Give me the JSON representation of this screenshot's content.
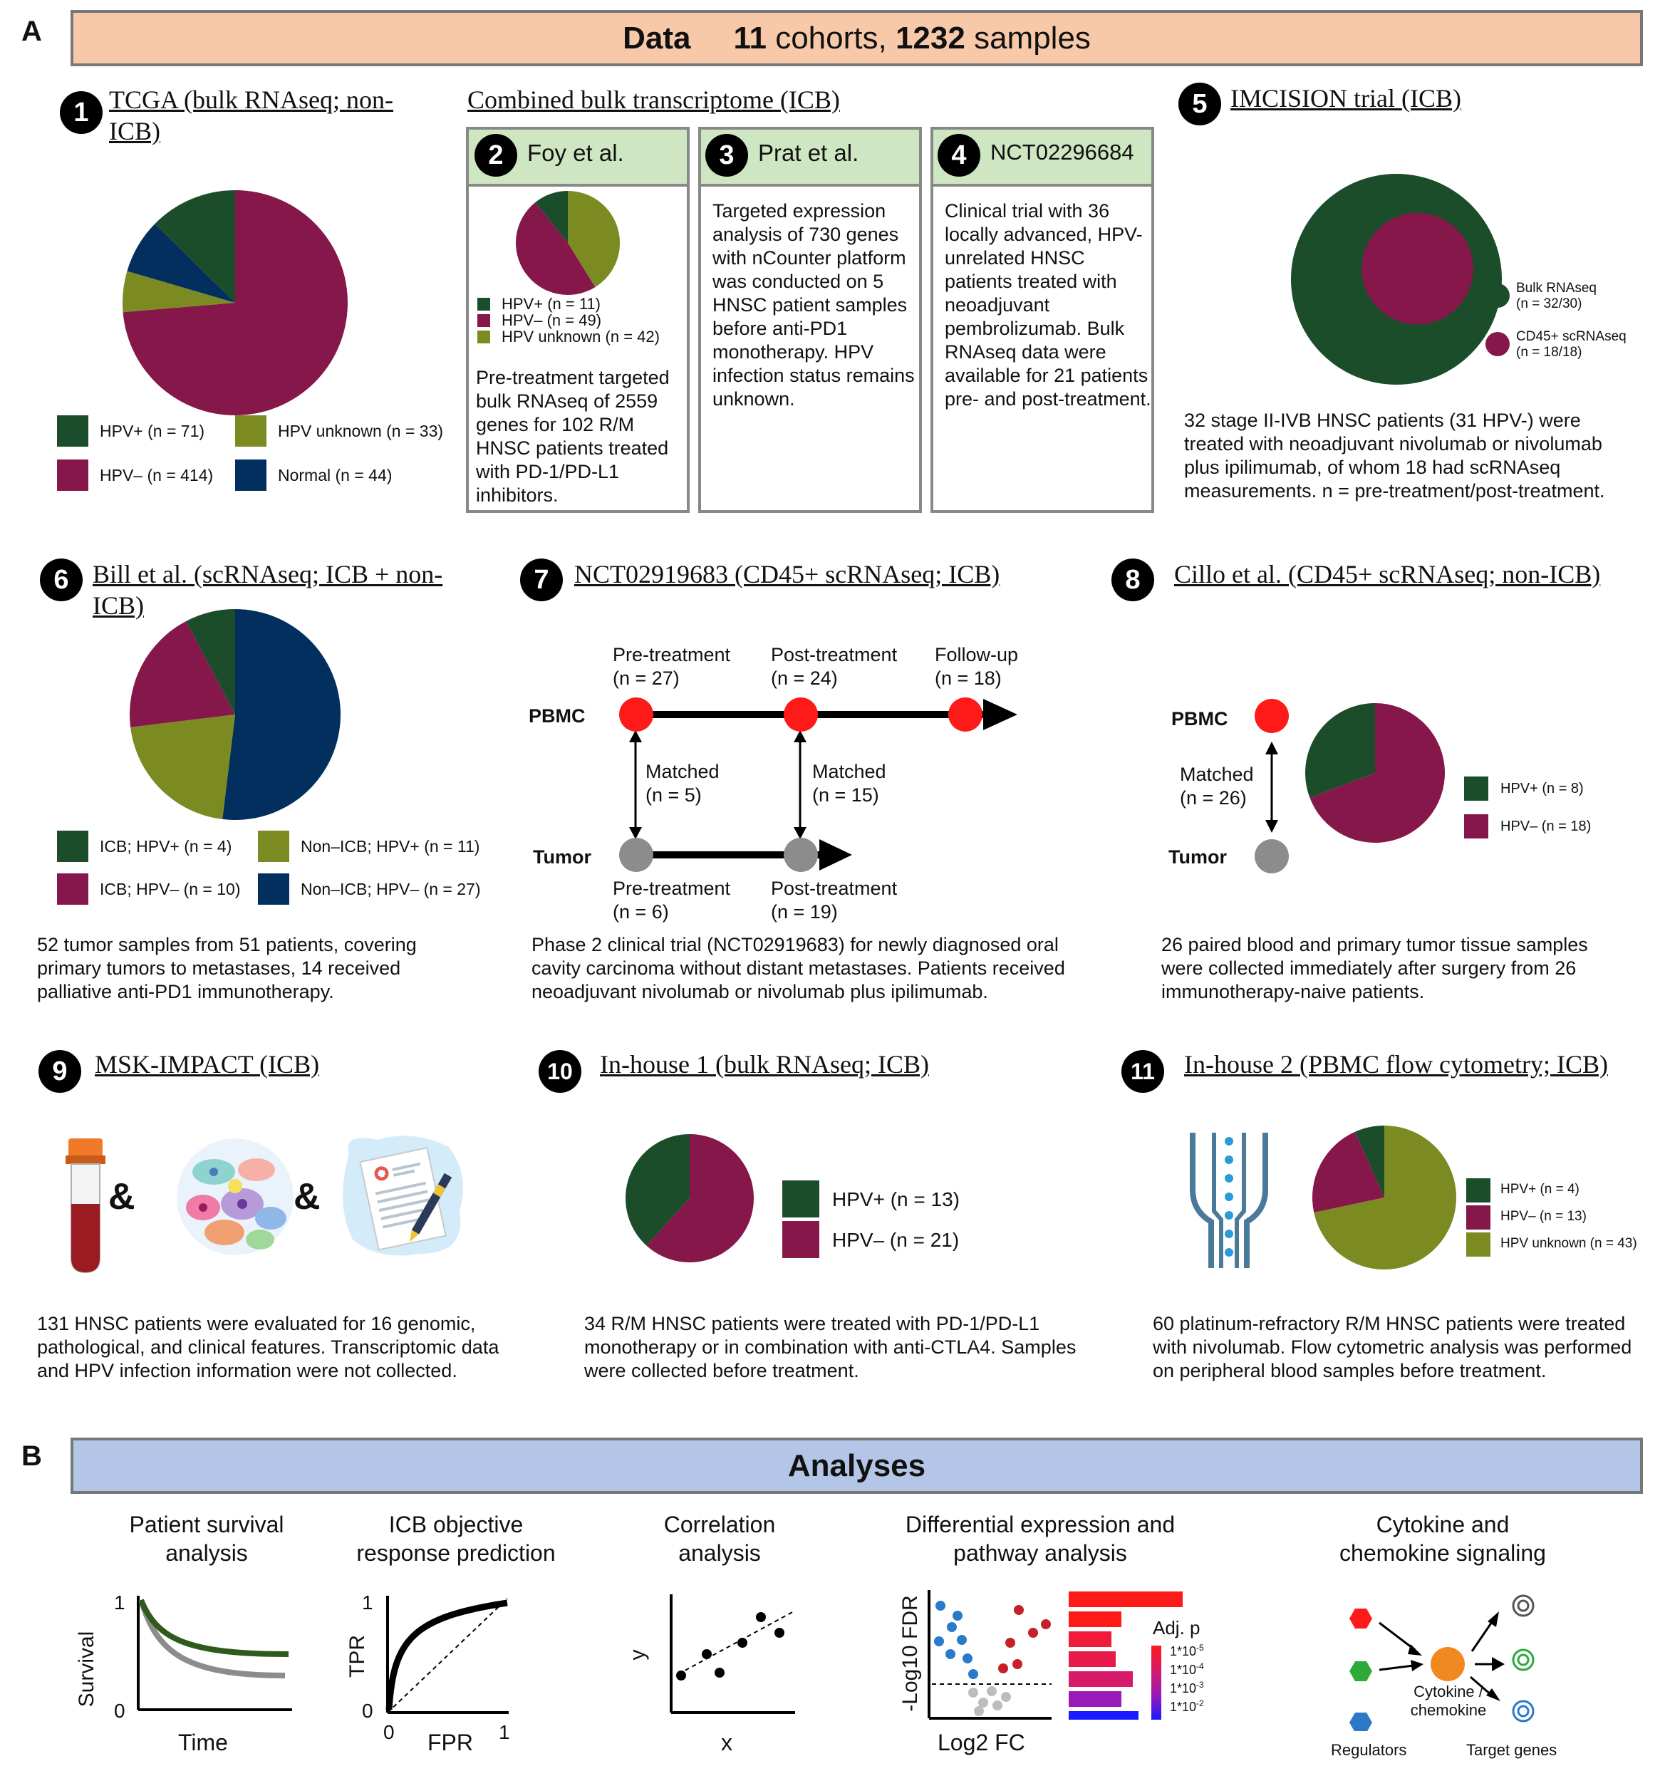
{
  "panel_a": {
    "letter": "A",
    "banner_data": "Data",
    "banner_cohorts_num": "11",
    "banner_cohorts_word": "cohorts,",
    "banner_samples_num": "1232",
    "banner_samples_word": "samples",
    "banner_color": "#f8c9a9"
  },
  "colors": {
    "hpv_pos": "#1b4d2a",
    "hpv_neg": "#86174a",
    "hpv_unknown": "#7c8a22",
    "normal": "#022f5e",
    "box_header": "#cfe6c2",
    "pbmc": "#ff1a1a",
    "tumor": "#8c8c8c",
    "analyses_banner": "#b4c6e7"
  },
  "d1": {
    "number": "1",
    "title": "TCGA (bulk RNAseq; non-ICB)",
    "legend": [
      "HPV+ (n = 71)",
      "HPV unknown (n = 33)",
      "HPV– (n = 414)",
      "Normal (n = 44)"
    ],
    "chart_data": {
      "type": "pie",
      "labels": [
        "HPV+",
        "HPV–",
        "HPV unknown",
        "Normal"
      ],
      "values": [
        71,
        414,
        33,
        44
      ]
    }
  },
  "combined_title": "Combined bulk transcriptome (ICB)",
  "d2": {
    "number": "2",
    "name": "Foy et al.",
    "legend": [
      "HPV+ (n = 11)",
      "HPV– (n = 49)",
      "HPV unknown (n = 42)"
    ],
    "text": "Pre-treatment targeted bulk RNAseq of 2559 genes for 102 R/M HNSC patients treated with PD-1/PD-L1 inhibitors.",
    "chart_data": {
      "type": "pie",
      "labels": [
        "HPV+",
        "HPV–",
        "HPV unknown"
      ],
      "values": [
        11,
        49,
        42
      ]
    }
  },
  "d3": {
    "number": "3",
    "name": "Prat et al.",
    "text": "Targeted expression analysis of 730 genes with nCounter platform was conducted on 5 HNSC patient samples before anti-PD1 monotherapy. HPV infection status remains unknown."
  },
  "d4": {
    "number": "4",
    "name": "NCT02296684",
    "text": "Clinical trial with 36 locally advanced, HPV-unrelated HNSC patients treated with neoadjuvant pembrolizumab. Bulk RNAseq data were available for 21 patients pre- and post-treatment."
  },
  "d5": {
    "number": "5",
    "title": "IMCISION trial (ICB)",
    "legend_bulk": "Bulk RNAseq",
    "legend_bulk_n": "(n = 32/30)",
    "legend_cd45": "CD45+ scRNAseq",
    "legend_cd45_n": "(n = 18/18)",
    "text": "32 stage II-IVB HNSC patients (31 HPV-) were treated with neoadjuvant nivolumab or nivolumab plus ipilimumab, of whom 18 had scRNAseq measurements. n = pre-treatment/post-treatment.",
    "chart_data": {
      "type": "nested-circles",
      "bulk_rnaseq_n": 32,
      "cd45_scrnaseq_n": 18
    }
  },
  "d6": {
    "number": "6",
    "title": "Bill et al. (scRNAseq; ICB + non-ICB)",
    "legend": [
      "ICB; HPV+ (n = 4)",
      "Non–ICB; HPV+ (n = 11)",
      "ICB; HPV– (n = 10)",
      "Non–ICB; HPV– (n = 27)"
    ],
    "text": "52 tumor samples from 51 patients, covering primary tumors to metastases, 14 received palliative anti-PD1 immunotherapy.",
    "chart_data": {
      "type": "pie",
      "labels": [
        "ICB; HPV+",
        "ICB; HPV–",
        "Non–ICB; HPV+",
        "Non–ICB; HPV–"
      ],
      "values": [
        4,
        10,
        11,
        27
      ]
    }
  },
  "d7": {
    "number": "7",
    "title": "NCT02919683 (CD45+ scRNAseq; ICB)",
    "pbmc": "PBMC",
    "tumor": "Tumor",
    "pre": "Pre-treatment",
    "pre_n": "(n = 27)",
    "post": "Post-treatment",
    "post_n": "(n = 24)",
    "follow": "Follow-up",
    "follow_n": "(n = 18)",
    "matched1": "Matched",
    "matched1_n": "(n = 5)",
    "matched2": "Matched",
    "matched2_n": "(n = 15)",
    "tpre": "Pre-treatment",
    "tpre_n": "(n = 6)",
    "tpost": "Post-treatment",
    "tpost_n": "(n = 19)",
    "text": "Phase 2 clinical trial (NCT02919683) for newly diagnosed oral cavity carcinoma without distant metastases. Patients received neoadjuvant nivolumab or nivolumab plus ipilimumab."
  },
  "d8": {
    "number": "8",
    "title": "Cillo et al. (CD45+ scRNAseq; non-ICB)",
    "pbmc": "PBMC",
    "tumor": "Tumor",
    "matched": "Matched",
    "matched_n": "(n = 26)",
    "legend": [
      "HPV+ (n = 8)",
      "HPV– (n = 18)"
    ],
    "text": "26 paired blood and primary tumor tissue samples were collected immediately after surgery from 26 immunotherapy-naive patients.",
    "chart_data": {
      "type": "pie",
      "labels": [
        "HPV+",
        "HPV–"
      ],
      "values": [
        8,
        18
      ]
    }
  },
  "d9": {
    "number": "9",
    "title": "MSK-IMPACT (ICB)",
    "amp": "&",
    "icons": [
      "blood-tube-icon",
      "tissue-cells-icon",
      "clinical-report-icon"
    ],
    "text": "131 HNSC patients were evaluated for 16 genomic, pathological, and clinical features. Transcriptomic data and HPV infection information were not collected."
  },
  "d10": {
    "number": "10",
    "title": "In-house 1 (bulk RNAseq; ICB)",
    "legend": [
      "HPV+ (n = 13)",
      "HPV– (n = 21)"
    ],
    "text": "34 R/M HNSC patients were treated with PD-1/PD-L1 monotherapy or in combination with anti-CTLA4. Samples were collected before treatment.",
    "chart_data": {
      "type": "pie",
      "labels": [
        "HPV+",
        "HPV–"
      ],
      "values": [
        13,
        21
      ]
    }
  },
  "d11": {
    "number": "11",
    "title": "In-house 2 (PBMC flow cytometry; ICB)",
    "legend": [
      "HPV+ (n = 4)",
      "HPV– (n = 13)",
      "HPV unknown (n = 43)"
    ],
    "text": "60 platinum-refractory R/M HNSC patients were treated with nivolumab. Flow cytometric analysis was performed on peripheral blood samples before treatment.",
    "chart_data": {
      "type": "pie",
      "labels": [
        "HPV+",
        "HPV–",
        "HPV unknown"
      ],
      "values": [
        4,
        13,
        43
      ]
    }
  },
  "panel_b": {
    "letter": "B",
    "banner": "Analyses",
    "survival": {
      "title1": "Patient survival",
      "title2": "analysis",
      "ylabel": "Survival",
      "xlabel": "Time",
      "y1": "1",
      "y0": "0"
    },
    "roc": {
      "title1": "ICB objective",
      "title2": "response prediction",
      "ylabel": "TPR",
      "xlabel": "FPR",
      "y1": "1",
      "y0": "0",
      "x0": "0",
      "x1": "1"
    },
    "corr": {
      "title1": "Correlation",
      "title2": "analysis",
      "ylabel": "y",
      "xlabel": "x"
    },
    "de": {
      "title1": "Differential expression and",
      "title2": "pathway analysis",
      "ylabel": "-Log10 FDR",
      "xlabel": "Log2 FC",
      "adjp": "Adj. p",
      "scale": [
        "1*10",
        "1*10",
        "1*10",
        "1*10"
      ],
      "exps": [
        "-5",
        "-4",
        "-3",
        "-2"
      ]
    },
    "cyto": {
      "title1": "Cytokine and",
      "title2": "chemokine signaling",
      "center1": "Cytokine /",
      "center2": "chemokine",
      "regulators": "Regulators",
      "targets": "Target genes"
    }
  }
}
